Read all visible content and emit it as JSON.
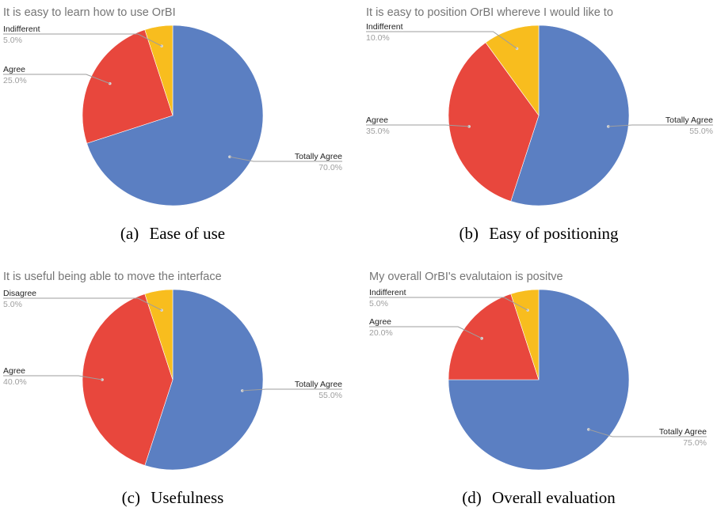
{
  "chart_data": [
    {
      "type": "pie",
      "title": "It is easy to learn how to use OrBI",
      "caption_tag": "(a)",
      "caption_text": "Ease of use",
      "slices": [
        {
          "label": "Totally Agree",
          "value": 70.0,
          "pct_label": "70.0%",
          "color": "#5b7fc2"
        },
        {
          "label": "Agree",
          "value": 25.0,
          "pct_label": "25.0%",
          "color": "#e8473d"
        },
        {
          "label": "Indifferent",
          "value": 5.0,
          "pct_label": "5.0%",
          "color": "#f8bd1e"
        }
      ]
    },
    {
      "type": "pie",
      "title": "It is easy to position OrBI whereve I would like to",
      "caption_tag": "(b)",
      "caption_text": "Easy of positioning",
      "slices": [
        {
          "label": "Totally Agree",
          "value": 55.0,
          "pct_label": "55.0%",
          "color": "#5b7fc2"
        },
        {
          "label": "Agree",
          "value": 35.0,
          "pct_label": "35.0%",
          "color": "#e8473d"
        },
        {
          "label": "Indifferent",
          "value": 10.0,
          "pct_label": "10.0%",
          "color": "#f8bd1e"
        }
      ]
    },
    {
      "type": "pie",
      "title": "It is useful being able to move the interface",
      "caption_tag": "(c)",
      "caption_text": "Usefulness",
      "slices": [
        {
          "label": "Totally Agree",
          "value": 55.0,
          "pct_label": "55.0%",
          "color": "#5b7fc2"
        },
        {
          "label": "Agree",
          "value": 40.0,
          "pct_label": "40.0%",
          "color": "#e8473d"
        },
        {
          "label": "Disagree",
          "value": 5.0,
          "pct_label": "5.0%",
          "color": "#f8bd1e"
        }
      ]
    },
    {
      "type": "pie",
      "title": "My overall OrBI's evalutaion is positve",
      "caption_tag": "(d)",
      "caption_text": "Overall evaluation",
      "slices": [
        {
          "label": "Totally Agree",
          "value": 75.0,
          "pct_label": "75.0%",
          "color": "#5b7fc2"
        },
        {
          "label": "Agree",
          "value": 20.0,
          "pct_label": "20.0%",
          "color": "#e8473d"
        },
        {
          "label": "Indifferent",
          "value": 5.0,
          "pct_label": "5.0%",
          "color": "#f8bd1e"
        }
      ]
    }
  ]
}
